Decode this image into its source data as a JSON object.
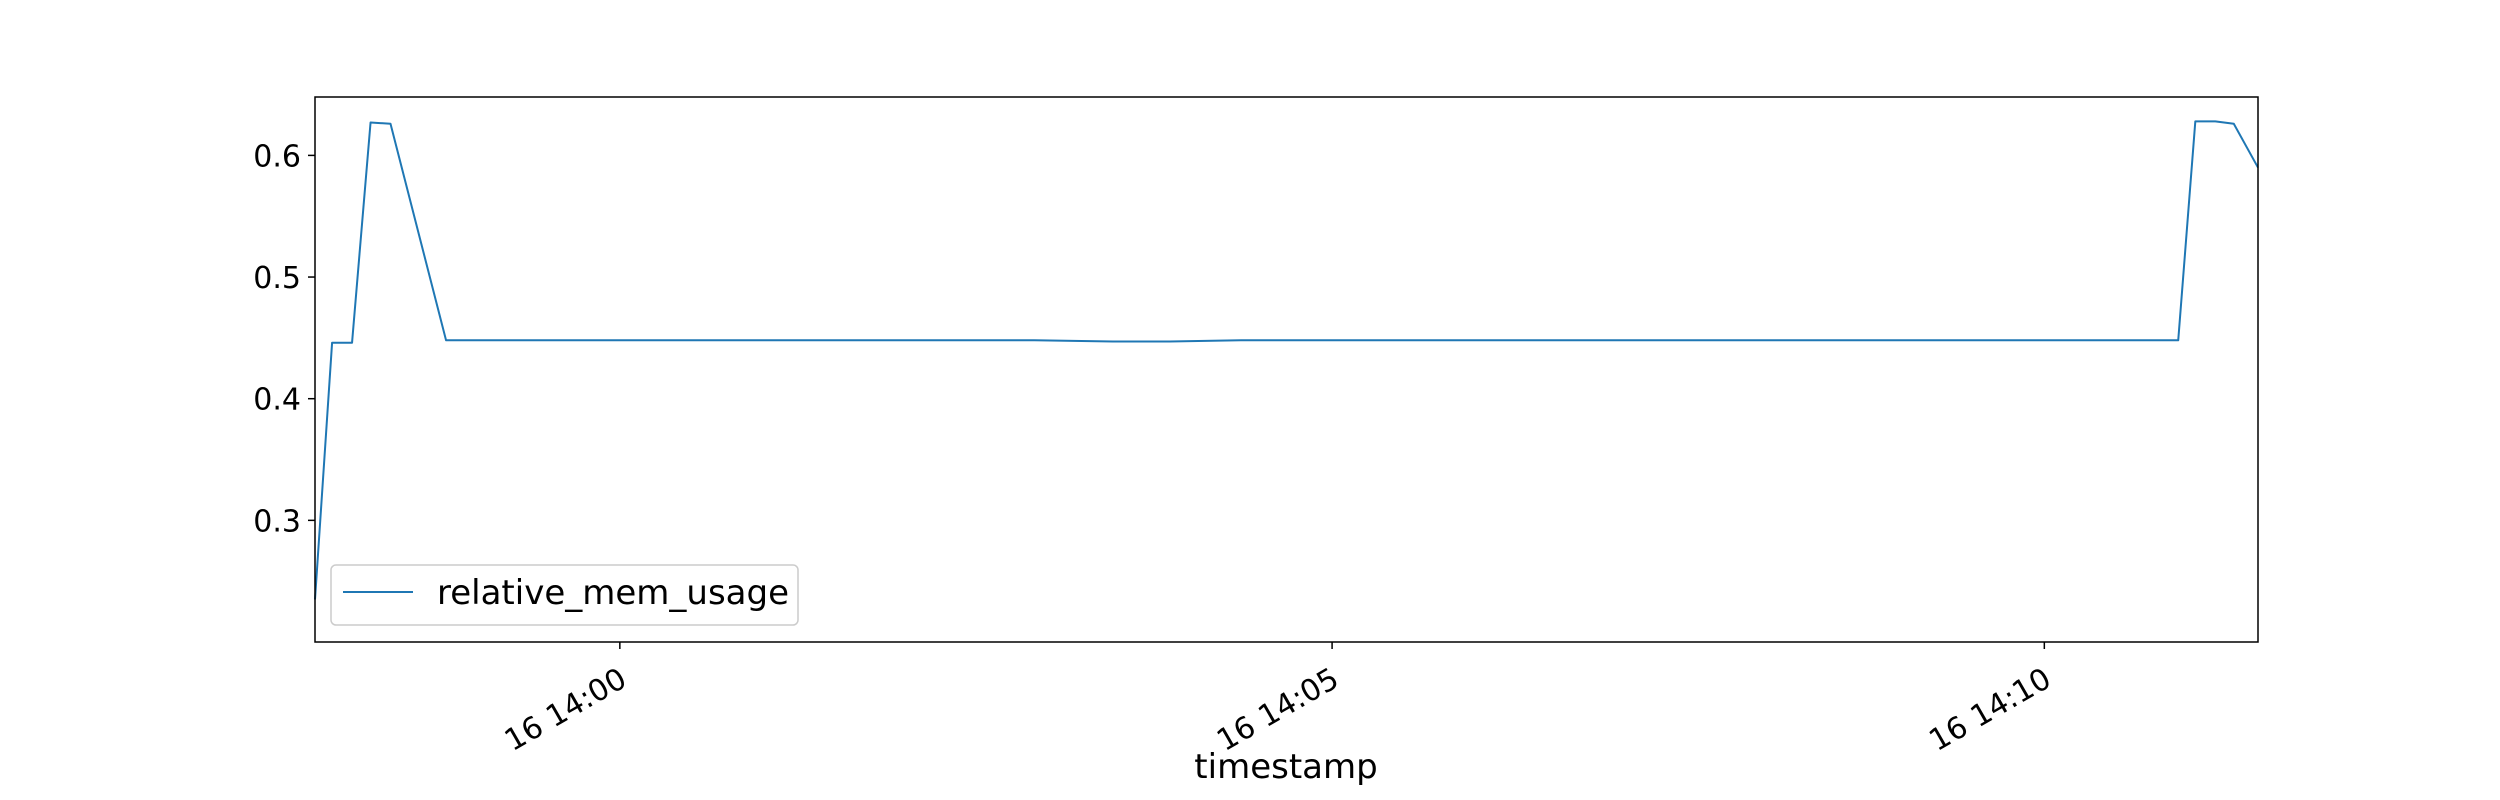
{
  "chart_data": {
    "type": "line",
    "title": "",
    "xlabel": "timestamp",
    "ylabel": "",
    "xlim": [
      0,
      13.64
    ],
    "ylim": [
      0.2,
      0.648
    ],
    "legend_position": "lower-left",
    "y_ticks": [
      {
        "value": 0.3,
        "label": "0.3"
      },
      {
        "value": 0.4,
        "label": "0.4"
      },
      {
        "value": 0.5,
        "label": "0.5"
      },
      {
        "value": 0.6,
        "label": "0.6"
      }
    ],
    "x_ticks": [
      {
        "value": 2.14,
        "label": "16 14:00"
      },
      {
        "value": 7.14,
        "label": "16 14:05"
      },
      {
        "value": 12.14,
        "label": "16 14:10"
      }
    ],
    "series": [
      {
        "name": "relative_mem_usage",
        "color": "#1f77b4",
        "x": [
          0.0,
          0.12,
          0.26,
          0.39,
          0.53,
          0.92,
          2.14,
          3.5,
          5.05,
          5.6,
          6.0,
          6.5,
          7.0,
          8.5,
          10.0,
          11.5,
          13.08,
          13.2,
          13.34,
          13.47,
          13.64
        ],
        "y": [
          0.235,
          0.446,
          0.446,
          0.627,
          0.626,
          0.448,
          0.448,
          0.448,
          0.448,
          0.447,
          0.447,
          0.448,
          0.448,
          0.448,
          0.448,
          0.448,
          0.448,
          0.628,
          0.628,
          0.626,
          0.59
        ]
      }
    ]
  }
}
